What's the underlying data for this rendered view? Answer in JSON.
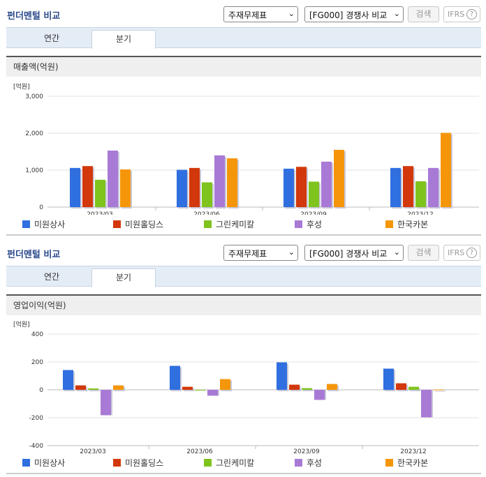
{
  "companies": [
    {
      "name": "미원상사",
      "color": "#2f6fdf"
    },
    {
      "name": "미원홀딩스",
      "color": "#d2380b"
    },
    {
      "name": "그린케미칼",
      "color": "#7fc31d"
    },
    {
      "name": "후성",
      "color": "#a87ad6"
    },
    {
      "name": "한국카본",
      "color": "#f5960a"
    }
  ],
  "panels": [
    {
      "title": "펀더멘털 비교",
      "select_statement": "주재무제표",
      "select_compare": "[FG000] 경쟁사 비교",
      "search_label": "검색",
      "ifrs_label": "IFRS",
      "help_glyph": "?",
      "tab_annual": "연간",
      "tab_quarter": "분기",
      "metric_title": "매출액(억원)"
    },
    {
      "title": "펀더멘털 비교",
      "select_statement": "주재무제표",
      "select_compare": "[FG000] 경쟁사 비교",
      "search_label": "검색",
      "ifrs_label": "IFRS",
      "help_glyph": "?",
      "tab_annual": "연간",
      "tab_quarter": "분기",
      "metric_title": "영업이익(억원)"
    }
  ],
  "chart_data": [
    {
      "type": "bar",
      "unit_label": "[억원]",
      "categories": [
        "2023/03",
        "2023/06",
        "2023/09",
        "2023/12"
      ],
      "ylim": [
        0,
        3000
      ],
      "yticks": [
        0,
        1000,
        2000,
        3000
      ],
      "ytick_labels": [
        "0",
        "1,000",
        "2,000",
        "3,000"
      ],
      "grid": true,
      "legend": "bottom",
      "series": [
        {
          "name": "미원상사",
          "values": [
            1060,
            1010,
            1040,
            1060
          ]
        },
        {
          "name": "미원홀딩스",
          "values": [
            1110,
            1060,
            1090,
            1110
          ]
        },
        {
          "name": "그린케미칼",
          "values": [
            740,
            670,
            690,
            700
          ]
        },
        {
          "name": "후성",
          "values": [
            1530,
            1400,
            1230,
            1060
          ]
        },
        {
          "name": "한국카본",
          "values": [
            1020,
            1320,
            1550,
            2010
          ]
        }
      ]
    },
    {
      "type": "bar",
      "unit_label": "[억원]",
      "categories": [
        "2023/03",
        "2023/06",
        "2023/09",
        "2023/12"
      ],
      "ylim": [
        -400,
        400
      ],
      "yticks": [
        -400,
        -200,
        0,
        200,
        400
      ],
      "ytick_labels": [
        "-400",
        "-200",
        "0",
        "200",
        "400"
      ],
      "grid": true,
      "legend": "bottom",
      "series": [
        {
          "name": "미원상사",
          "values": [
            142,
            172,
            197,
            152
          ]
        },
        {
          "name": "미원홀딩스",
          "values": [
            32,
            22,
            37,
            47
          ]
        },
        {
          "name": "그린케미칼",
          "values": [
            10,
            -2,
            12,
            22
          ]
        },
        {
          "name": "후성",
          "values": [
            -182,
            -42,
            -72,
            -197
          ]
        },
        {
          "name": "한국카본",
          "values": [
            32,
            77,
            42,
            2
          ]
        }
      ]
    }
  ]
}
